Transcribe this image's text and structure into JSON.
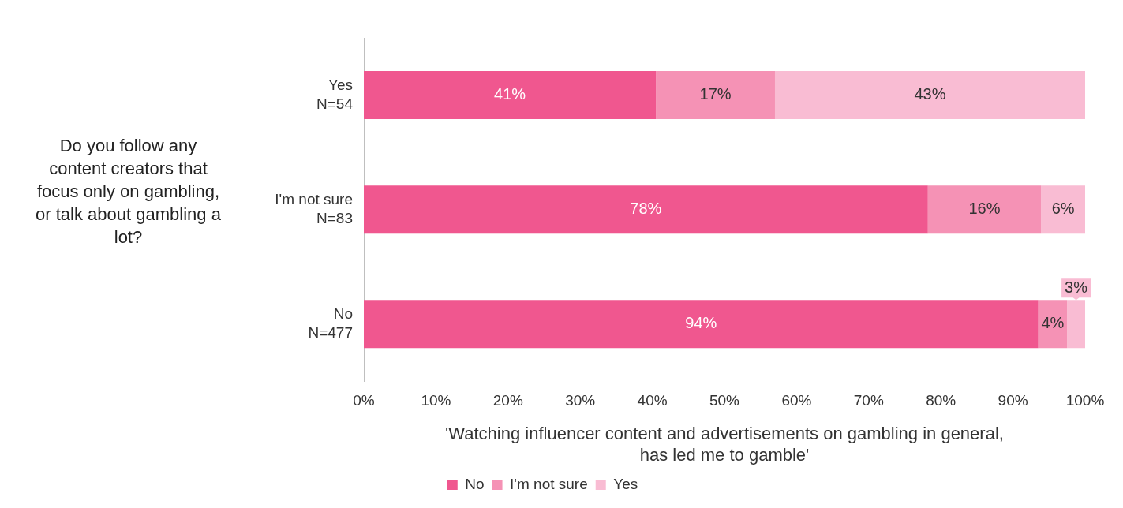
{
  "chart_data": {
    "type": "bar",
    "orientation": "horizontal",
    "stacked": true,
    "ylabel": "Do you follow any content creators that focus only on gambling, or talk about gambling a lot?",
    "xlabel": "'Watching influencer content and advertisements on gambling in general,\nhas led me to gamble'",
    "categories": [
      "Yes\nN=54",
      "I'm not sure\nN=83",
      "No\nN=477"
    ],
    "series": [
      {
        "name": "No",
        "color": "#f0578f",
        "values": [
          40.5,
          78.2,
          93.5
        ],
        "value_labels": [
          "41%",
          "78%",
          "94%"
        ]
      },
      {
        "name": "I'm not sure",
        "color": "#f592b5",
        "values": [
          16.5,
          15.7,
          4
        ],
        "value_labels": [
          "17%",
          "16%",
          "4%"
        ]
      },
      {
        "name": "Yes",
        "color": "#f9bcd3",
        "values": [
          43,
          6.1,
          2.5
        ],
        "value_labels": [
          "43%",
          "6%",
          "3%"
        ]
      }
    ],
    "xlim": [
      0,
      100
    ],
    "xticks": [
      {
        "value": 0,
        "label": "0%"
      },
      {
        "value": 10,
        "label": "10%"
      },
      {
        "value": 20,
        "label": "20%"
      },
      {
        "value": 30,
        "label": "30%"
      },
      {
        "value": 40,
        "label": "40%"
      },
      {
        "value": 50,
        "label": "50%"
      },
      {
        "value": 60,
        "label": "60%"
      },
      {
        "value": 70,
        "label": "70%"
      },
      {
        "value": 80,
        "label": "80%"
      },
      {
        "value": 90,
        "label": "90%"
      },
      {
        "value": 100,
        "label": "100%"
      }
    ],
    "grid": false,
    "legend": "bottom"
  }
}
